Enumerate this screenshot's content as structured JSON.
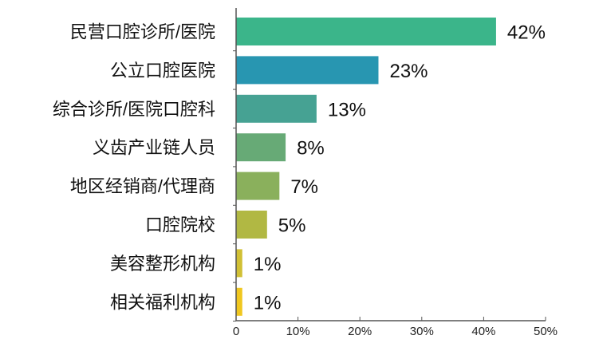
{
  "chart_data": {
    "type": "bar",
    "orientation": "horizontal",
    "title": "",
    "xlabel": "",
    "ylabel": "",
    "categories": [
      "民营口腔诊所/医院",
      "公立口腔医院",
      "综合诊所/医院口腔科",
      "义齿产业链人员",
      "地区经销商/代理商",
      "口腔院校",
      "美容整形机构",
      "相关福利机构"
    ],
    "values": [
      42,
      23,
      13,
      8,
      7,
      5,
      1,
      1
    ],
    "value_labels": [
      "42%",
      "23%",
      "13%",
      "8%",
      "7%",
      "5%",
      "1%",
      "1%"
    ],
    "colors": [
      "#3bb58a",
      "#2896b1",
      "#46a293",
      "#67aa76",
      "#8ab05c",
      "#b1b843",
      "#d1c034",
      "#f0c71f"
    ],
    "xlim": [
      0,
      50
    ],
    "xticks": [
      0,
      10,
      20,
      30,
      40,
      50
    ],
    "xtick_labels": [
      "0",
      "10%",
      "20%",
      "30%",
      "40%",
      "50%"
    ],
    "grid": false,
    "legend": "none"
  }
}
